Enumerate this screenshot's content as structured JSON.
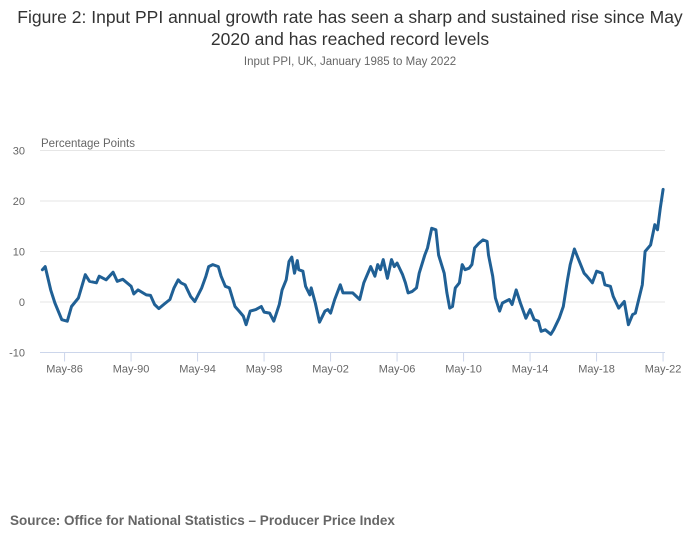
{
  "title": "Figure 2: Input PPI annual growth rate has seen a sharp and sustained rise since May 2020 and has reached record levels",
  "subtitle": "Input PPI, UK, January 1985 to May 2022",
  "source": "Source: Office for National Statistics – Producer Price Index",
  "chart_data": {
    "type": "line",
    "title": "Figure 2: Input PPI annual growth rate has seen a sharp and sustained rise since May 2020 and has reached record levels",
    "subtitle": "Input PPI, UK, January 1985 to May 2022",
    "ylabel": "Percentage Points",
    "xlabel": "",
    "ylim": [
      -10,
      30
    ],
    "yticks": [
      "30",
      "20",
      "10",
      "0",
      "-10"
    ],
    "xticks": [
      "May-86",
      "May-90",
      "May-94",
      "May-98",
      "May-02",
      "May-06",
      "May-10",
      "May-14",
      "May-18",
      "May-22"
    ],
    "xlim": [
      "1985-01",
      "2022-05"
    ],
    "grid": true,
    "line_color": "#206095",
    "series": [
      {
        "x": [
          "1985-01",
          "1985-03",
          "1985-07",
          "1985-10",
          "1986-03",
          "1986-07",
          "1986-10",
          "1987-03",
          "1987-08",
          "1987-11",
          "1988-04",
          "1988-06",
          "1988-11",
          "1989-04",
          "1989-07",
          "1989-11",
          "1990-05",
          "1990-07",
          "1990-10",
          "1991-04",
          "1991-07",
          "1991-10",
          "1992-01",
          "1992-05",
          "1992-09",
          "1992-12",
          "1993-03",
          "1993-05",
          "1993-08",
          "1993-12",
          "1994-03",
          "1994-08",
          "1994-11",
          "1995-01",
          "1995-04",
          "1995-08",
          "1995-10",
          "1996-01",
          "1996-04",
          "1996-08",
          "1996-11",
          "1997-02",
          "1997-04",
          "1997-07",
          "1997-11",
          "1998-03",
          "1998-05",
          "1998-09",
          "1998-12",
          "1999-04",
          "1999-06",
          "1999-09",
          "1999-11",
          "2000-01",
          "2000-03",
          "2000-05",
          "2000-06",
          "2000-09",
          "2000-11",
          "2001-02",
          "2001-03",
          "2001-06",
          "2001-09",
          "2002-01",
          "2002-03",
          "2002-05",
          "2002-08",
          "2002-12",
          "2003-02",
          "2003-04",
          "2003-09",
          "2004-02",
          "2004-05",
          "2004-10",
          "2005-01",
          "2005-03",
          "2005-05",
          "2005-07",
          "2005-10",
          "2006-01",
          "2006-03",
          "2006-05",
          "2006-09",
          "2006-11",
          "2007-01",
          "2007-04",
          "2007-07",
          "2007-09",
          "2008-01",
          "2008-03",
          "2008-06",
          "2008-09",
          "2008-11",
          "2009-03",
          "2009-05",
          "2009-07",
          "2009-09",
          "2009-11",
          "2010-02",
          "2010-04",
          "2010-06",
          "2010-09",
          "2010-11",
          "2011-01",
          "2011-04",
          "2011-07",
          "2011-10",
          "2011-11",
          "2012-02",
          "2012-04",
          "2012-07",
          "2012-09",
          "2013-02",
          "2013-04",
          "2013-07",
          "2013-10",
          "2014-02",
          "2014-05",
          "2014-08",
          "2014-11",
          "2015-01",
          "2015-04",
          "2015-08",
          "2015-10",
          "2016-02",
          "2016-05",
          "2016-08",
          "2016-10",
          "2017-01",
          "2017-04",
          "2017-08",
          "2017-10",
          "2018-02",
          "2018-05",
          "2018-09",
          "2018-11",
          "2019-03",
          "2019-05",
          "2019-09",
          "2020-01",
          "2020-04",
          "2020-07",
          "2020-09",
          "2021-02",
          "2021-04",
          "2021-08",
          "2021-11",
          "2022-01",
          "2022-03",
          "2022-05"
        ],
        "values": [
          6.4,
          7.0,
          2.4,
          -0.2,
          -3.5,
          -3.8,
          -0.9,
          0.8,
          5.4,
          4.1,
          3.8,
          5.1,
          4.4,
          5.9,
          4.1,
          4.5,
          3.1,
          1.6,
          2.4,
          1.4,
          1.3,
          -0.5,
          -1.3,
          -0.4,
          0.5,
          2.8,
          4.4,
          3.8,
          3.4,
          1.1,
          0.1,
          2.8,
          5.1,
          7.0,
          7.4,
          7.0,
          5.1,
          3.1,
          2.8,
          -0.9,
          -1.8,
          -2.8,
          -4.5,
          -1.8,
          -1.5,
          -0.9,
          -2.0,
          -2.2,
          -3.8,
          -0.5,
          2.4,
          4.4,
          8.0,
          8.9,
          5.7,
          8.2,
          6.4,
          6.1,
          3.1,
          1.4,
          2.8,
          -0.2,
          -4.0,
          -1.8,
          -1.5,
          -2.2,
          0.5,
          3.4,
          1.8,
          1.8,
          1.8,
          0.5,
          3.8,
          7.0,
          5.1,
          7.4,
          6.4,
          8.4,
          4.7,
          8.4,
          7.0,
          7.7,
          5.4,
          3.8,
          1.8,
          2.1,
          2.8,
          5.7,
          9.3,
          10.7,
          14.6,
          14.3,
          9.3,
          5.7,
          1.8,
          -1.2,
          -0.9,
          2.8,
          3.8,
          7.4,
          6.4,
          6.7,
          7.4,
          10.7,
          11.6,
          12.3,
          12.0,
          9.3,
          5.1,
          0.8,
          -1.8,
          -0.2,
          0.5,
          -0.5,
          2.4,
          -0.2,
          -3.2,
          -1.5,
          -3.5,
          -3.8,
          -5.8,
          -5.5,
          -6.4,
          -5.5,
          -3.2,
          -0.9,
          4.4,
          7.4,
          10.5,
          8.4,
          5.7,
          5.1,
          3.8,
          6.1,
          5.7,
          3.4,
          3.1,
          1.1,
          -1.2,
          0.1,
          -4.5,
          -2.5,
          -2.2,
          3.4,
          10.0,
          11.3,
          15.3,
          14.3,
          18.6,
          22.3
        ]
      }
    ]
  }
}
